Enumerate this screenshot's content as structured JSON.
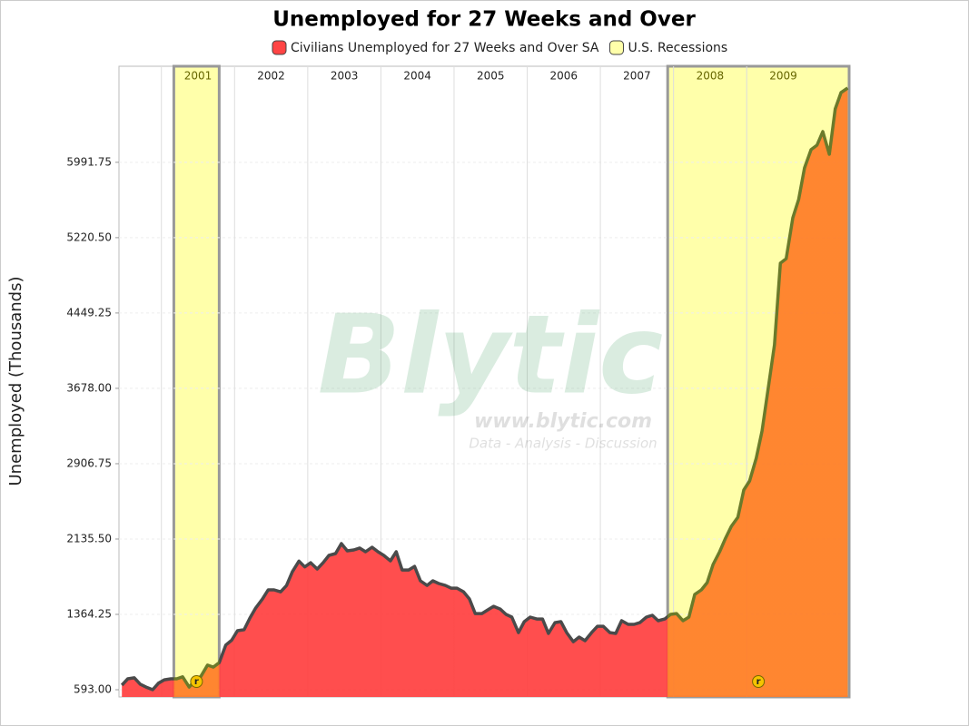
{
  "chart_data": {
    "type": "area",
    "title": "Unemployed for 27 Weeks and Over",
    "y_label": "Unemployed (Thousands)",
    "watermark": {
      "logo": "Blytic",
      "url": "www.blytic.com",
      "tagline": "Data - Analysis - Discussion"
    },
    "annotation": "r",
    "x": [
      2000.46,
      2000.54,
      2000.63,
      2000.71,
      2000.79,
      2000.88,
      2000.96,
      2001.04,
      2001.13,
      2001.21,
      2001.29,
      2001.38,
      2001.46,
      2001.54,
      2001.63,
      2001.71,
      2001.79,
      2001.88,
      2001.96,
      2002.04,
      2002.13,
      2002.21,
      2002.29,
      2002.38,
      2002.46,
      2002.54,
      2002.63,
      2002.71,
      2002.79,
      2002.88,
      2002.96,
      2003.04,
      2003.13,
      2003.21,
      2003.29,
      2003.38,
      2003.46,
      2003.54,
      2003.63,
      2003.71,
      2003.79,
      2003.88,
      2003.96,
      2004.04,
      2004.13,
      2004.21,
      2004.29,
      2004.38,
      2004.46,
      2004.54,
      2004.63,
      2004.71,
      2004.79,
      2004.88,
      2004.96,
      2005.04,
      2005.13,
      2005.21,
      2005.29,
      2005.38,
      2005.46,
      2005.54,
      2005.63,
      2005.71,
      2005.79,
      2005.88,
      2005.96,
      2006.04,
      2006.13,
      2006.21,
      2006.29,
      2006.38,
      2006.46,
      2006.54,
      2006.63,
      2006.71,
      2006.79,
      2006.88,
      2006.96,
      2007.04,
      2007.13,
      2007.21,
      2007.29,
      2007.38,
      2007.46,
      2007.54,
      2007.63,
      2007.71,
      2007.79,
      2007.88,
      2007.96,
      2008.04,
      2008.13,
      2008.21,
      2008.29,
      2008.38,
      2008.46,
      2008.54,
      2008.63,
      2008.71,
      2008.79,
      2008.88,
      2008.96,
      2009.04,
      2009.13,
      2009.21,
      2009.29,
      2009.38,
      2009.46,
      2009.54,
      2009.63,
      2009.71,
      2009.79,
      2009.88,
      2009.96,
      2010.04,
      2010.13,
      2010.21,
      2010.29,
      2010.38
    ],
    "series": [
      {
        "name": "Civilians Unemployed for 27 Weeks and Over SA",
        "color": "#ff4444",
        "recession_color": "#ff7f2a",
        "line_color": "#4a4a4a",
        "values": [
          640,
          705,
          715,
          650,
          620,
          593,
          660,
          695,
          705,
          705,
          725,
          620,
          685,
          730,
          845,
          825,
          870,
          1050,
          1100,
          1197,
          1207,
          1327,
          1430,
          1520,
          1615,
          1615,
          1595,
          1660,
          1800,
          1910,
          1850,
          1893,
          1829,
          1893,
          1968,
          1987,
          2089,
          2015,
          2024,
          2043,
          2005,
          2052,
          2005,
          1968,
          1912,
          2005,
          1819,
          1819,
          1856,
          1708,
          1661,
          1708,
          1680,
          1661,
          1633,
          1633,
          1596,
          1522,
          1373,
          1373,
          1410,
          1447,
          1419,
          1364,
          1336,
          1178,
          1290,
          1336,
          1317,
          1317,
          1169,
          1280,
          1290,
          1178,
          1085,
          1132,
          1095,
          1178,
          1243,
          1243,
          1178,
          1169,
          1299,
          1262,
          1262,
          1280,
          1336,
          1355,
          1299,
          1317,
          1364,
          1373,
          1299,
          1336,
          1568,
          1615,
          1689,
          1875,
          2005,
          2144,
          2265,
          2358,
          2637,
          2730,
          2962,
          3241,
          3659,
          4123,
          4959,
          5006,
          5424,
          5610,
          5935,
          6121,
          6167,
          6306,
          6074,
          6538,
          6706,
          6752
        ]
      }
    ],
    "recessions": {
      "name": "U.S. Recessions",
      "color": "#ffffaa",
      "periods": [
        {
          "start": 2001.17,
          "end": 2001.79
        },
        {
          "start": 2007.92,
          "end": 2010.4
        }
      ]
    },
    "xlim": [
      2000.42,
      2010.4
    ],
    "xticks": [
      2001,
      2002,
      2003,
      2004,
      2005,
      2006,
      2007,
      2008,
      2009
    ],
    "ylim": [
      519,
      6975
    ],
    "yticks": [
      {
        "value": 593,
        "label": "593.00"
      },
      {
        "value": 1364.25,
        "label": "1364.25"
      },
      {
        "value": 2135.5,
        "label": "2135.50"
      },
      {
        "value": 2906.75,
        "label": "2906.75"
      },
      {
        "value": 3678,
        "label": "3678.00"
      },
      {
        "value": 4449.25,
        "label": "4449.25"
      },
      {
        "value": 5220.5,
        "label": "5220.50"
      },
      {
        "value": 5991.75,
        "label": "5991.75"
      }
    ],
    "grid": true
  }
}
